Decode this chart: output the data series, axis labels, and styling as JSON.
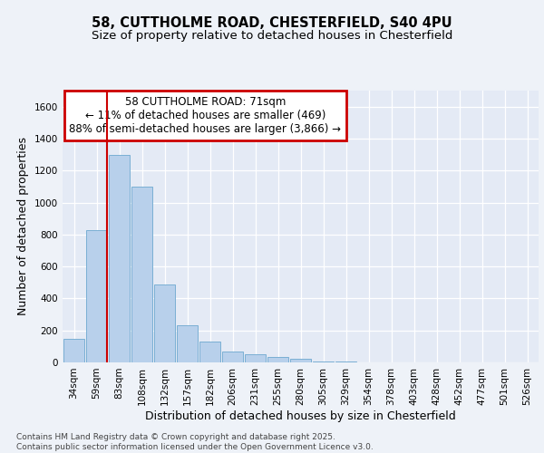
{
  "title_line1": "58, CUTTHOLME ROAD, CHESTERFIELD, S40 4PU",
  "title_line2": "Size of property relative to detached houses in Chesterfield",
  "xlabel": "Distribution of detached houses by size in Chesterfield",
  "ylabel": "Number of detached properties",
  "bar_color": "#b8d0eb",
  "bar_edge_color": "#7aafd4",
  "annotation_line1": "58 CUTTHOLME ROAD: 71sqm",
  "annotation_line2": "← 11% of detached houses are smaller (469)",
  "annotation_line3": "88% of semi-detached houses are larger (3,866) →",
  "vline_color": "#cc0000",
  "annotation_box_color": "#ffffff",
  "annotation_box_edge": "#cc0000",
  "categories": [
    "34sqm",
    "59sqm",
    "83sqm",
    "108sqm",
    "132sqm",
    "157sqm",
    "182sqm",
    "206sqm",
    "231sqm",
    "255sqm",
    "280sqm",
    "305sqm",
    "329sqm",
    "354sqm",
    "378sqm",
    "403sqm",
    "428sqm",
    "452sqm",
    "477sqm",
    "501sqm",
    "526sqm"
  ],
  "values": [
    148,
    825,
    1300,
    1100,
    490,
    235,
    130,
    70,
    50,
    35,
    20,
    5,
    5,
    0,
    0,
    0,
    0,
    0,
    0,
    0,
    0
  ],
  "ylim": [
    0,
    1700
  ],
  "yticks": [
    0,
    200,
    400,
    600,
    800,
    1000,
    1200,
    1400,
    1600
  ],
  "footer_line1": "Contains HM Land Registry data © Crown copyright and database right 2025.",
  "footer_line2": "Contains public sector information licensed under the Open Government Licence v3.0.",
  "background_color": "#eef2f8",
  "plot_bg_color": "#e4eaf5",
  "grid_color": "#ffffff",
  "title_fontsize": 10.5,
  "subtitle_fontsize": 9.5,
  "axis_label_fontsize": 9,
  "tick_fontsize": 7.5,
  "footer_fontsize": 6.5,
  "vline_x_idx": 1.5
}
